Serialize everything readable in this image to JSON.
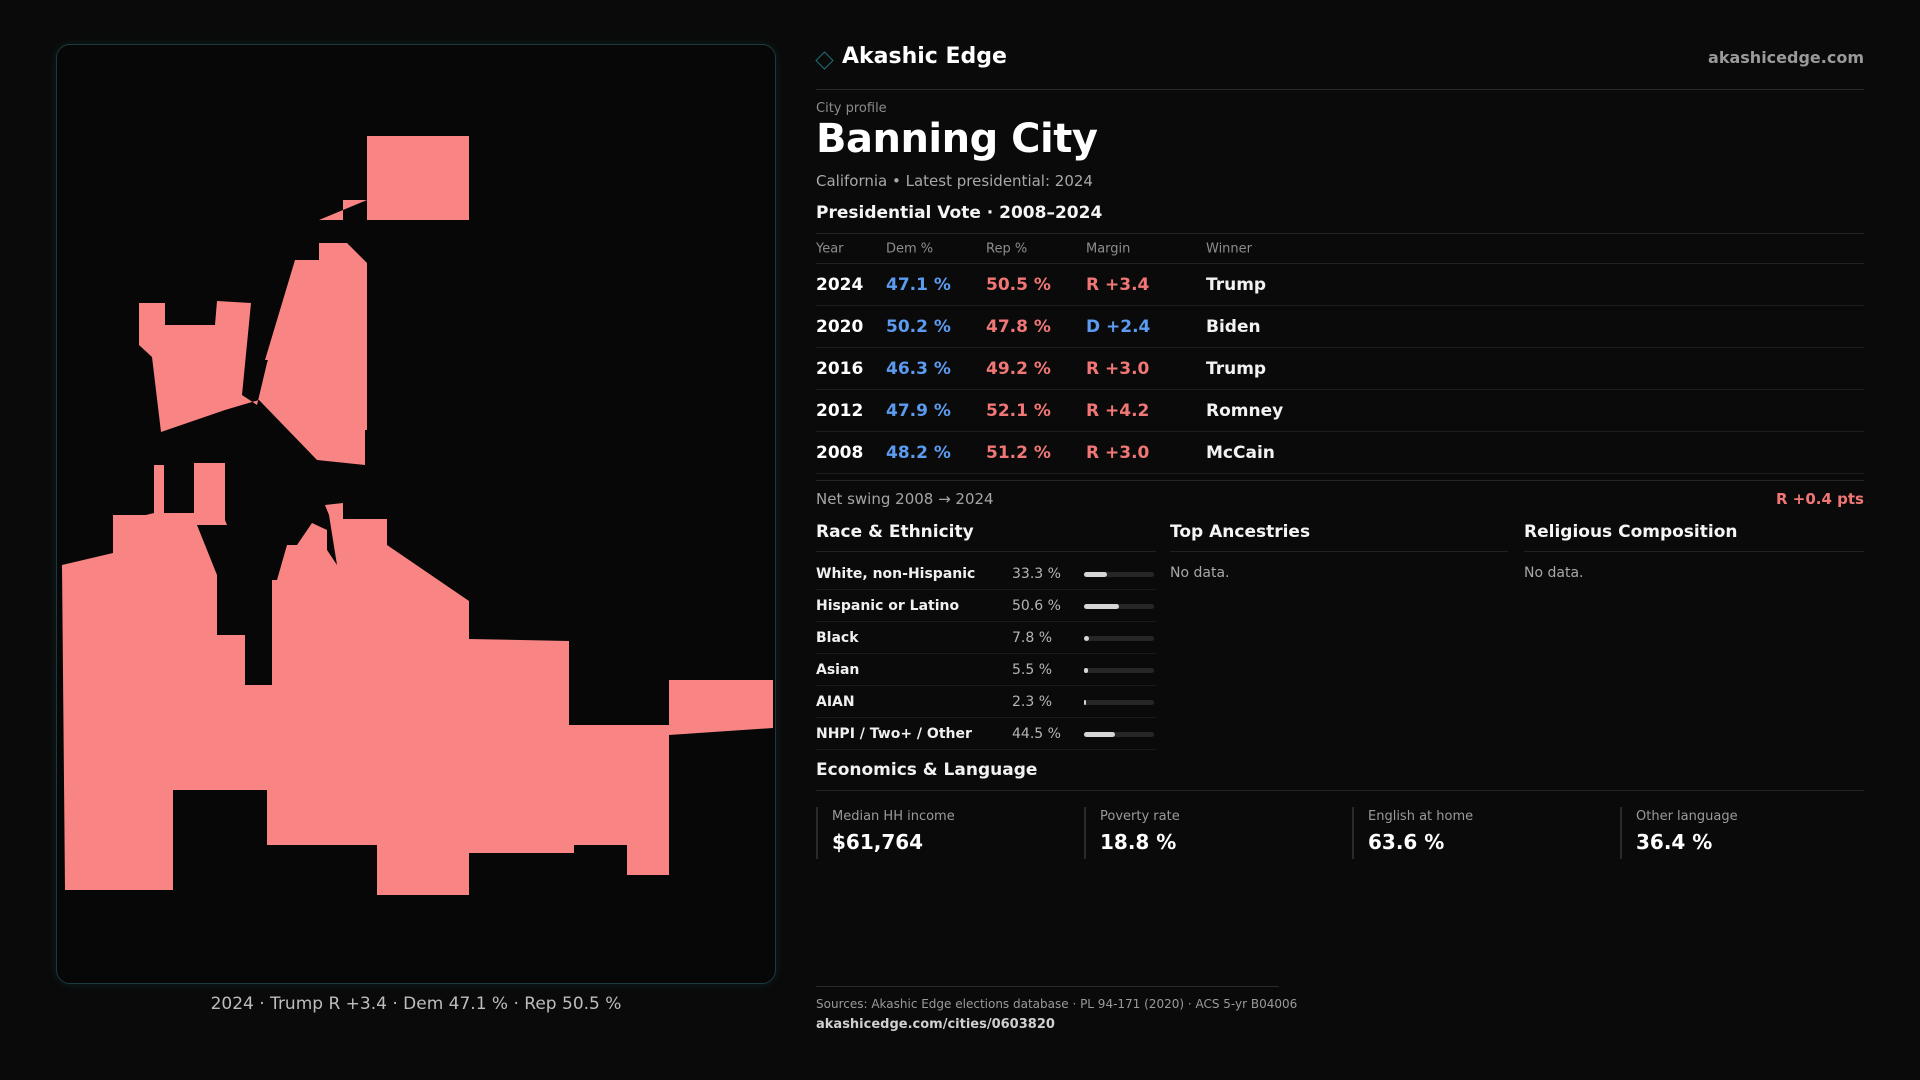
{
  "map": {
    "fill_color": "#f88584",
    "caption": "2024 · Trump R +3.4 · Dem 47.1 % · Rep 50.5 %"
  },
  "brand": {
    "name": "Akashic Edge",
    "url": "akashicedge.com",
    "accent_color": "#1f6f78"
  },
  "profile": {
    "eyebrow": "City profile",
    "title": "Banning City",
    "subtitle": "California • Latest presidential: 2024"
  },
  "vote": {
    "section_title": "Presidential Vote · 2008–2024",
    "headers": {
      "year": "Year",
      "dem": "Dem %",
      "rep": "Rep %",
      "margin": "Margin",
      "winner": "Winner"
    },
    "rows": [
      {
        "year": "2024",
        "dem": "47.1 %",
        "rep": "50.5 %",
        "margin": "R +3.4",
        "margin_party": "rep",
        "winner": "Trump"
      },
      {
        "year": "2020",
        "dem": "50.2 %",
        "rep": "47.8 %",
        "margin": "D +2.4",
        "margin_party": "dem",
        "winner": "Biden"
      },
      {
        "year": "2016",
        "dem": "46.3 %",
        "rep": "49.2 %",
        "margin": "R +3.0",
        "margin_party": "rep",
        "winner": "Trump"
      },
      {
        "year": "2012",
        "dem": "47.9 %",
        "rep": "52.1 %",
        "margin": "R +4.2",
        "margin_party": "rep",
        "winner": "Romney"
      },
      {
        "year": "2008",
        "dem": "48.2 %",
        "rep": "51.2 %",
        "margin": "R +3.0",
        "margin_party": "rep",
        "winner": "McCain"
      }
    ],
    "swing_label": "Net swing 2008 → 2024",
    "swing_value": "R +0.4 pts",
    "dem_color": "#5b9bf0",
    "rep_color": "#f17777"
  },
  "race": {
    "title": "Race & Ethnicity",
    "rows": [
      {
        "label": "White, non-Hispanic",
        "pct": "33.3 %",
        "value": 0.333
      },
      {
        "label": "Hispanic or Latino",
        "pct": "50.6 %",
        "value": 0.506
      },
      {
        "label": "Black",
        "pct": "7.8 %",
        "value": 0.078
      },
      {
        "label": "Asian",
        "pct": "5.5 %",
        "value": 0.055
      },
      {
        "label": "AIAN",
        "pct": "2.3 %",
        "value": 0.023
      },
      {
        "label": "NHPI / Two+ / Other",
        "pct": "44.5 %",
        "value": 0.445
      }
    ]
  },
  "ancestries": {
    "title": "Top Ancestries",
    "empty": "No data."
  },
  "religion": {
    "title": "Religious Composition",
    "empty": "No data."
  },
  "econ": {
    "title": "Economics & Language",
    "cards": [
      {
        "label": "Median HH income",
        "value": "$61,764"
      },
      {
        "label": "Poverty rate",
        "value": "18.8 %"
      },
      {
        "label": "English at home",
        "value": "63.6 %"
      },
      {
        "label": "Other language",
        "value": "36.4 %"
      }
    ]
  },
  "footer": {
    "sources": "Sources: Akashic Edge elections database · PL 94-171 (2020) · ACS 5-yr B04006",
    "url": "akashicedge.com/cities/0603820"
  }
}
